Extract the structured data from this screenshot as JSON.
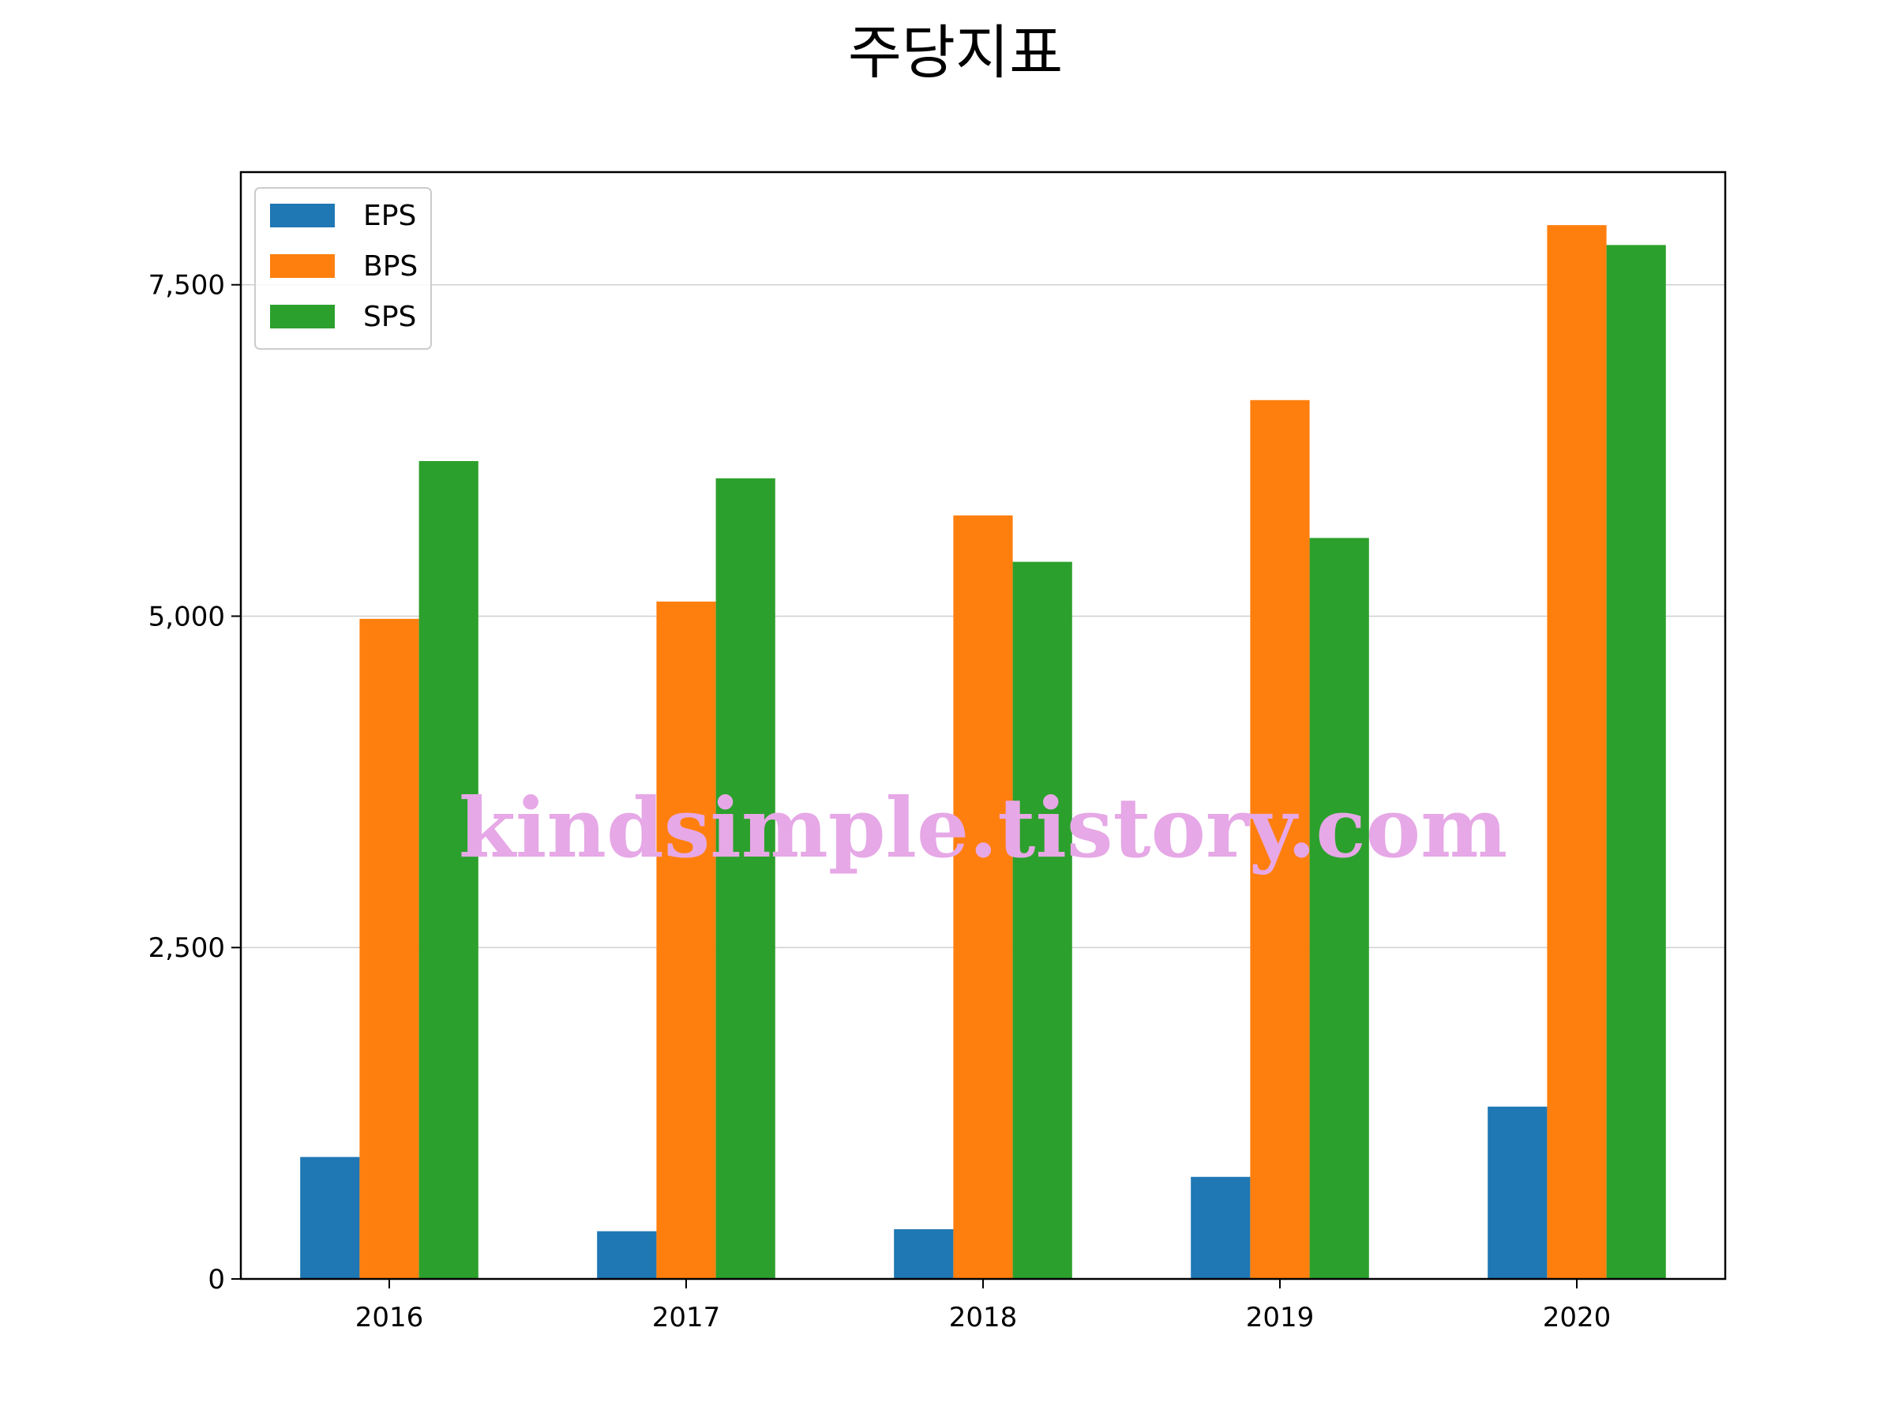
{
  "chart_data": {
    "type": "bar",
    "title": "주당지표",
    "xlabel": "",
    "ylabel": "",
    "categories": [
      "2016",
      "2017",
      "2018",
      "2019",
      "2020"
    ],
    "series": [
      {
        "name": "EPS",
        "values": [
          920,
          360,
          375,
          770,
          1300
        ],
        "color": "#1f77b4"
      },
      {
        "name": "BPS",
        "values": [
          4980,
          5110,
          5760,
          6630,
          7950
        ],
        "color": "#ff7f0e"
      },
      {
        "name": "SPS",
        "values": [
          6170,
          6040,
          5410,
          5590,
          7800
        ],
        "color": "#2ca02c"
      }
    ],
    "ylim": [
      0,
      8350
    ],
    "yticks": [
      0,
      2500,
      5000,
      7500
    ],
    "ytick_labels": [
      "0",
      "2,500",
      "5,000",
      "7,500"
    ],
    "grid": "horizontal",
    "legend_position": "top-left"
  },
  "watermark": {
    "text": "kindsimple.tistory.com",
    "color": "#e6a8e6"
  }
}
